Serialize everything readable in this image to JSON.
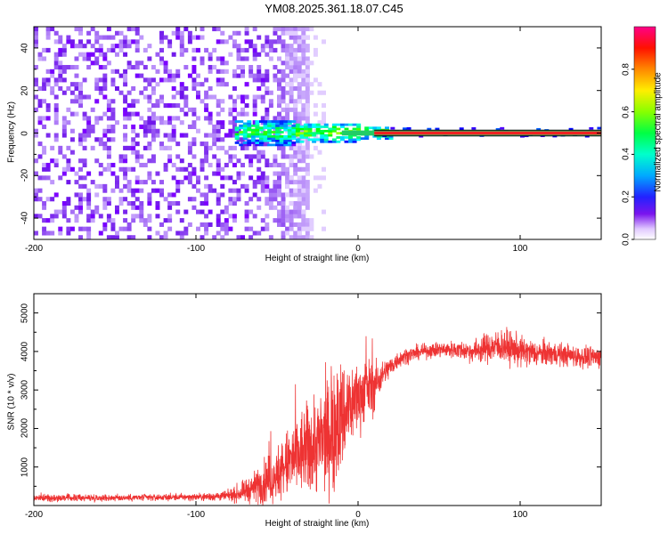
{
  "title": "YM08.2025.361.18.07.C45",
  "chart_data": [
    {
      "type": "heatmap",
      "xlabel": "Height of straight line (km)",
      "ylabel": "Frequency (Hz)",
      "xlim": [
        -200,
        150
      ],
      "ylim": [
        -50,
        50
      ],
      "xticks": [
        -200,
        -100,
        0,
        100
      ],
      "xtick_labels": [
        "-200",
        "-100",
        "0",
        "100"
      ],
      "yticks": [
        -40,
        -20,
        0,
        20,
        40
      ],
      "ytick_labels": [
        "-40",
        "-20",
        "0",
        "20",
        "40"
      ],
      "colorbar": {
        "label": "Normalized spectral amplitude",
        "range": [
          0,
          1
        ],
        "ticks": [
          0.0,
          0.2,
          0.4,
          0.6,
          0.8
        ],
        "tick_labels": [
          "0.0",
          "0.2",
          "0.4",
          "0.6",
          "0.8"
        ]
      },
      "regions": [
        {
          "x_range": [
            -200,
            -45
          ],
          "y_range": [
            -50,
            50
          ],
          "amplitude": 0.05,
          "description": "broadband low amplitude noise"
        },
        {
          "x_range": [
            -75,
            15
          ],
          "y_range": [
            -5,
            5
          ],
          "amplitude": 0.3,
          "description": "narrow band around 0 Hz"
        },
        {
          "x_range": [
            15,
            150
          ],
          "y_range": [
            -1,
            1
          ],
          "amplitude": 0.95,
          "description": "strong carrier line at 0 Hz"
        }
      ]
    },
    {
      "type": "line",
      "xlabel": "Height of straight line (km)",
      "ylabel": "SNR (10 * v/v)",
      "xlim": [
        -200,
        150
      ],
      "ylim": [
        0,
        5500
      ],
      "xticks": [
        -200,
        -100,
        0,
        100
      ],
      "xtick_labels": [
        "-200",
        "-100",
        "0",
        "100"
      ],
      "yticks": [
        1000,
        2000,
        3000,
        4000,
        5000
      ],
      "ytick_labels": [
        "1000",
        "2000",
        "3000",
        "4000",
        "5000"
      ],
      "series": [
        {
          "name": "SNR",
          "color": "#ee3333",
          "x": [
            -200,
            -150,
            -100,
            -80,
            -70,
            -60,
            -50,
            -40,
            -30,
            -20,
            -15,
            -10,
            -5,
            0,
            5,
            10,
            15,
            20,
            25,
            30,
            40,
            50,
            60,
            70,
            80,
            90,
            100,
            110,
            120,
            130,
            140,
            150
          ],
          "y": [
            200,
            200,
            220,
            250,
            350,
            550,
            800,
            1200,
            1500,
            1700,
            2000,
            2300,
            2600,
            2800,
            3000,
            3100,
            3400,
            3600,
            3800,
            3900,
            4000,
            4050,
            4050,
            4000,
            4100,
            4150,
            4000,
            3950,
            3950,
            3900,
            3850,
            3850
          ],
          "noise_scale": [
            80,
            80,
            80,
            120,
            250,
            450,
            650,
            900,
            1100,
            1200,
            1400,
            1300,
            1000,
            800,
            700,
            600,
            300,
            250,
            200,
            180,
            160,
            180,
            200,
            250,
            350,
            400,
            350,
            300,
            280,
            250,
            250,
            250
          ]
        }
      ]
    }
  ]
}
